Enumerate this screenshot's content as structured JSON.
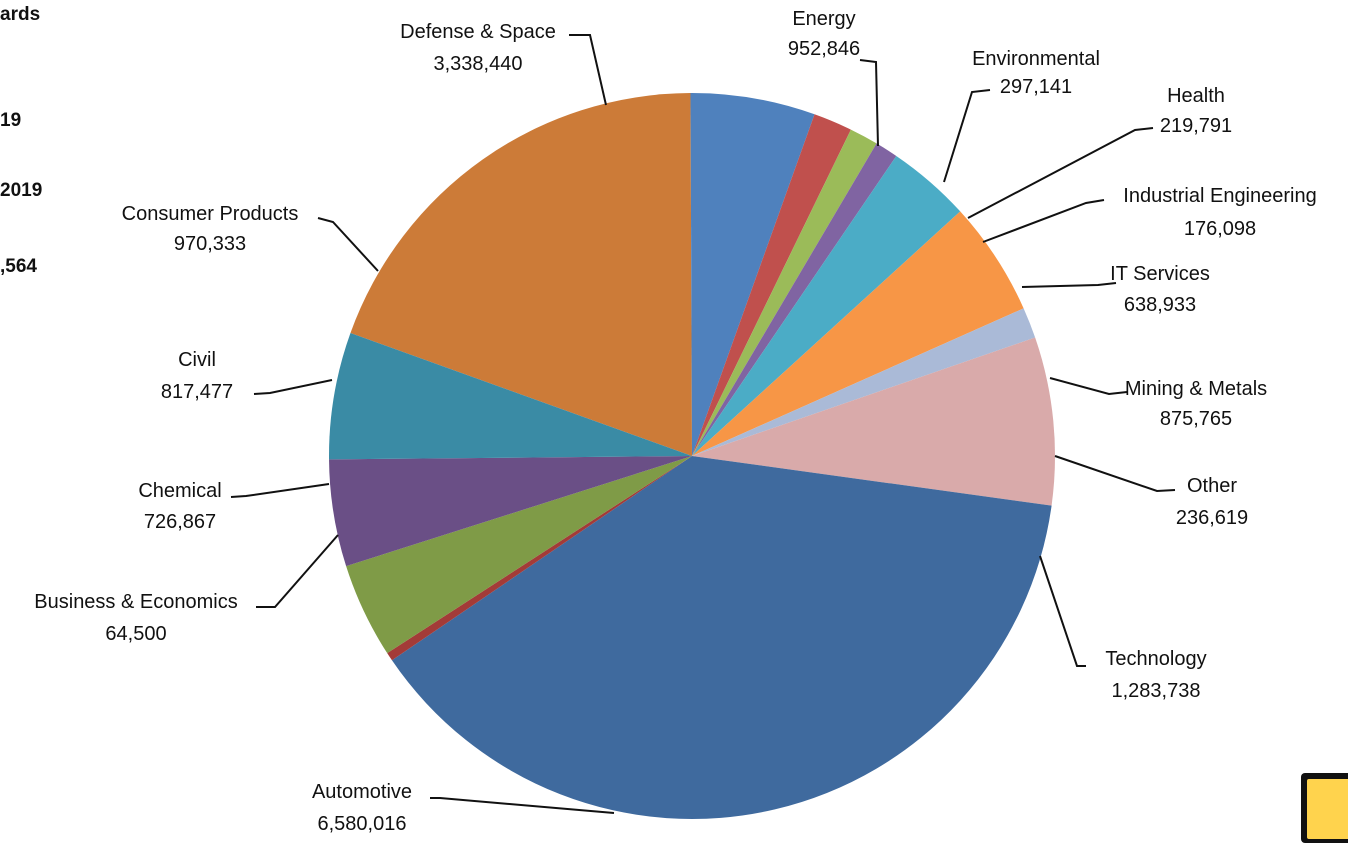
{
  "header_fragments": [
    "ards",
    "19",
    "2019",
    ",564"
  ],
  "chart_data": {
    "type": "pie",
    "title": "",
    "slices": [
      {
        "label": "Defense & Space",
        "value_label": "3,338,440",
        "value": 3338440,
        "color": "#cc7b38"
      },
      {
        "label": "Energy",
        "value_label": "952,846",
        "value": 952846,
        "color": "#4f81bd"
      },
      {
        "label": "Environmental",
        "value_label": "297,141",
        "value": 297141,
        "color": "#c0504d"
      },
      {
        "label": "Health",
        "value_label": "219,791",
        "value": 219791,
        "color": "#9bbb59"
      },
      {
        "label": "Industrial Engineering",
        "value_label": "176,098",
        "value": 176098,
        "color": "#8064a2"
      },
      {
        "label": "IT Services",
        "value_label": "638,933",
        "value": 638933,
        "color": "#4bacc6"
      },
      {
        "label": "Mining & Metals",
        "value_label": "875,765",
        "value": 875765,
        "color": "#f79646"
      },
      {
        "label": "Other",
        "value_label": "236,619",
        "value": 236619,
        "color": "#aabad7"
      },
      {
        "label": "Technology",
        "value_label": "1,283,738",
        "value": 1283738,
        "color": "#d9aaaa"
      },
      {
        "label": "Automotive",
        "value_label": "6,580,016",
        "value": 6580016,
        "color": "#3f6a9e"
      },
      {
        "label": "Business & Economics",
        "value_label": "64,500",
        "value": 64500,
        "color": "#a33b38"
      },
      {
        "label": "Chemical",
        "value_label": "726,867",
        "value": 726867,
        "color": "#7f9b47"
      },
      {
        "label": "Civil",
        "value_label": "817,477",
        "value": 817477,
        "color": "#6a4f86"
      },
      {
        "label": "Consumer Products",
        "value_label": "970,333",
        "value": 970333,
        "color": "#3a8ba5"
      }
    ]
  }
}
